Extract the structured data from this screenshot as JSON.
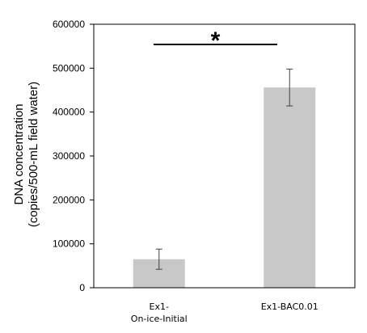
{
  "chart_data": {
    "type": "bar",
    "categories": [
      [
        "Ex1-",
        "On-ice-Initial"
      ],
      [
        "Ex1-BAC0.01"
      ]
    ],
    "values": [
      65000,
      456000
    ],
    "error": [
      23000,
      42000
    ],
    "ylabel_lines": [
      "DNA concentration",
      "(copies/500-mL field water)"
    ],
    "ylim": [
      0,
      600000
    ],
    "yticks": [
      0,
      100000,
      200000,
      300000,
      400000,
      500000,
      600000
    ],
    "significance": {
      "label": "*",
      "between": [
        0,
        1
      ]
    },
    "bar_color": "#c8c8c8",
    "grid": false
  }
}
